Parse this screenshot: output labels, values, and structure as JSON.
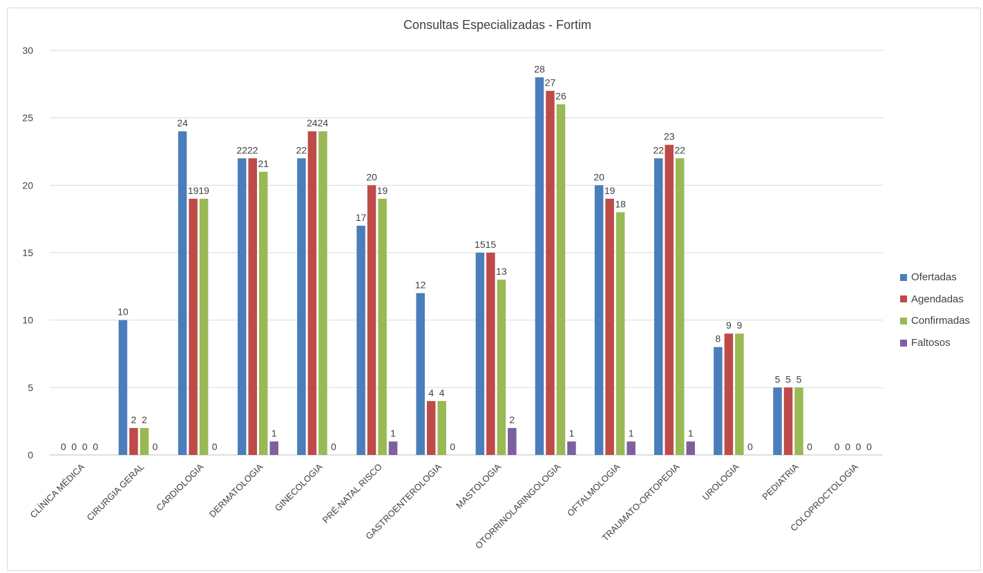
{
  "chart_data": {
    "type": "bar",
    "title": "Consultas Especializadas  - Fortim",
    "xlabel": "",
    "ylabel": "",
    "ylim": [
      0,
      30
    ],
    "yticks": [
      0,
      5,
      10,
      15,
      20,
      25,
      30
    ],
    "grid": true,
    "legend_position": "right",
    "categories": [
      "CLÍNICA MÉDICA",
      "CIRURGIA GERAL",
      "CARDIOLOGIA",
      "DERMATOLOGIA",
      "GINECOLOGIA",
      "PRÉ-NATAL RISCO",
      "GASTROENTEROLOGIA",
      "MASTOLOGIA",
      "OTORRINOLARINGOLOGIA",
      "OFTALMOLOGIA",
      "TRAUMATO-ORTOPEDIA",
      "UROLOGIA",
      "PEDIATRIA",
      "COLOPROCTOLOGIA"
    ],
    "series": [
      {
        "name": "Ofertadas",
        "color": "#4a7ebb",
        "values": [
          0,
          10,
          24,
          22,
          22,
          17,
          12,
          15,
          28,
          20,
          22,
          8,
          5,
          0
        ]
      },
      {
        "name": "Agendadas",
        "color": "#be4b48",
        "values": [
          0,
          2,
          19,
          22,
          24,
          20,
          4,
          15,
          27,
          19,
          23,
          9,
          5,
          0
        ]
      },
      {
        "name": "Confirmadas",
        "color": "#98b954",
        "values": [
          0,
          2,
          19,
          21,
          24,
          19,
          4,
          13,
          26,
          18,
          22,
          9,
          5,
          0
        ]
      },
      {
        "name": "Faltosos",
        "color": "#7d60a0",
        "values": [
          0,
          0,
          0,
          1,
          0,
          1,
          0,
          2,
          1,
          1,
          1,
          0,
          0,
          0
        ]
      }
    ]
  }
}
